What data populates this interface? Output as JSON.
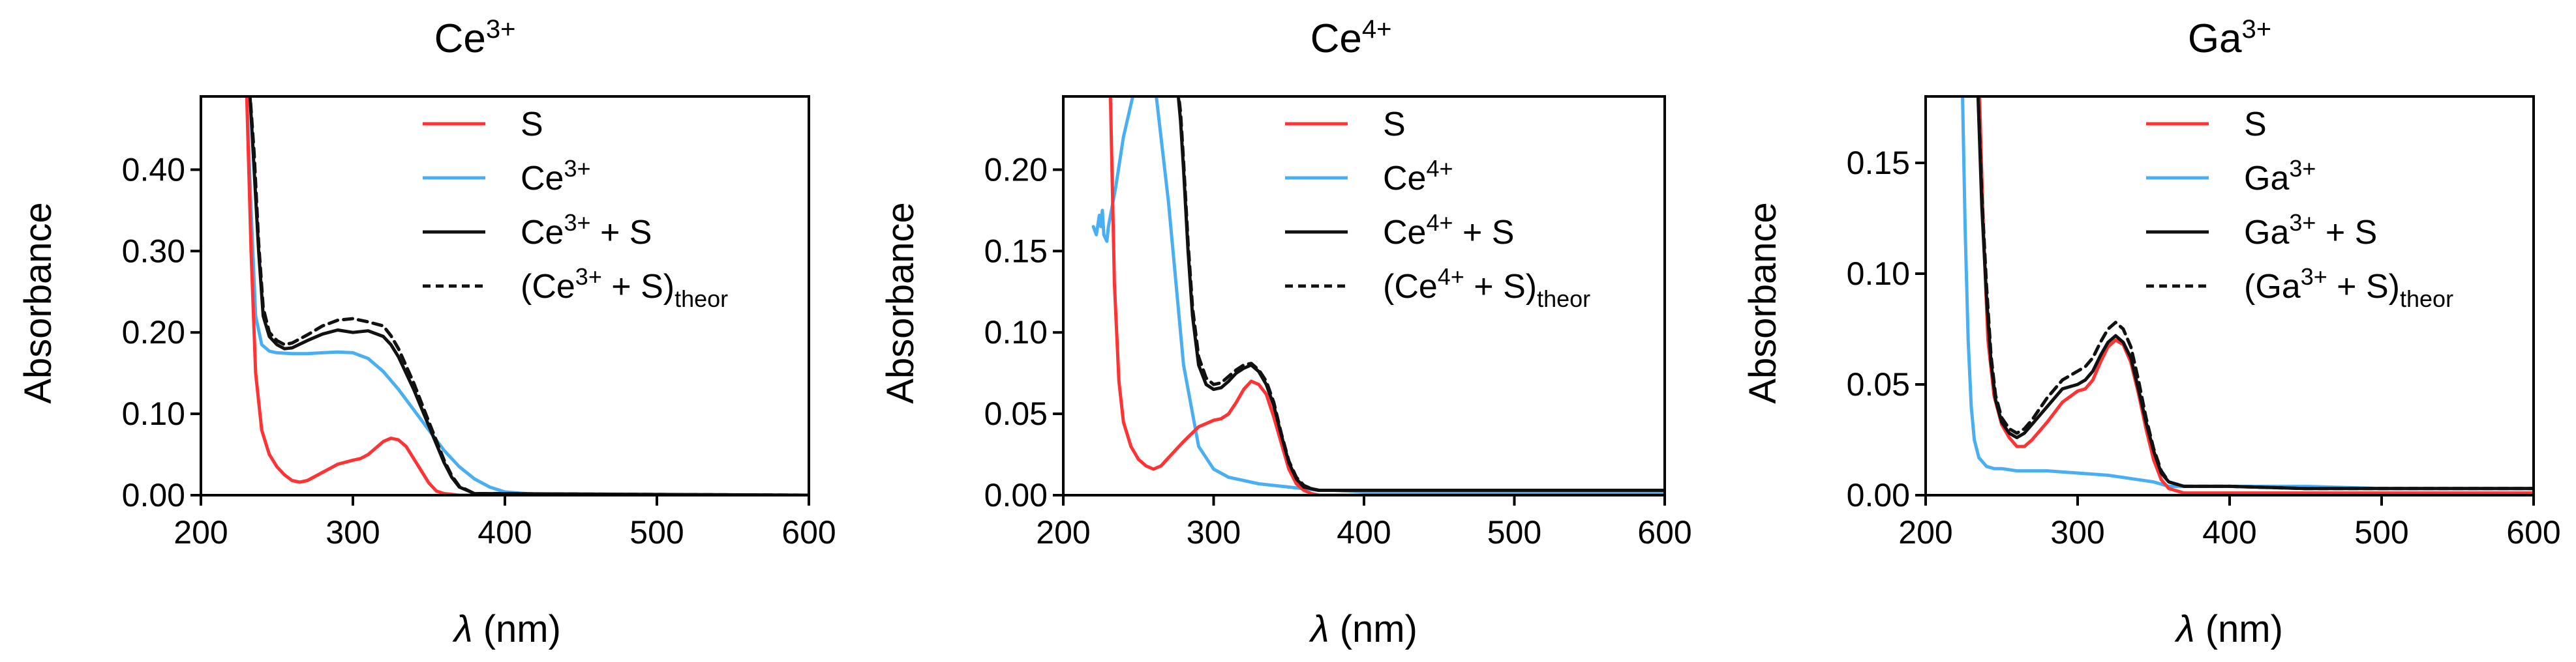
{
  "colors": {
    "S": "#ff3333",
    "ion": "#4aaef2",
    "combined": "#111111",
    "theor": "#111111"
  },
  "chart_data": [
    {
      "type": "line",
      "title": "Ce3+",
      "title_base": "Ce",
      "title_sup": "3+",
      "xlabel_sym": "λ",
      "xlabel_unit": " (nm)",
      "ylabel": "Absorbance",
      "xlim": [
        200,
        600
      ],
      "ylim": [
        0,
        0.49
      ],
      "xticks": [
        "200",
        "300",
        "400",
        "500",
        "600"
      ],
      "yticks": [
        "0.00",
        "0.10",
        "0.20",
        "0.30",
        "0.40"
      ],
      "legend_position": "top-right",
      "legend": [
        {
          "name": "S",
          "base": "S"
        },
        {
          "name": "Ce3+",
          "base": "Ce",
          "sup": "3+"
        },
        {
          "name": "Ce3+ + S",
          "base": "Ce",
          "sup": "3+",
          "tail": " + S"
        },
        {
          "name": "(Ce3+ + S)theor",
          "base": "(Ce",
          "sup": "3+",
          "tail": " + S)",
          "sub": "theor"
        }
      ],
      "series": [
        {
          "name": "S",
          "x": [
            230,
            233,
            236,
            240,
            245,
            250,
            255,
            260,
            265,
            270,
            280,
            290,
            300,
            305,
            310,
            315,
            320,
            325,
            330,
            335,
            340,
            345,
            350,
            355,
            360,
            370,
            400,
            600
          ],
          "y": [
            0.5,
            0.3,
            0.15,
            0.08,
            0.05,
            0.035,
            0.025,
            0.018,
            0.016,
            0.018,
            0.028,
            0.038,
            0.043,
            0.045,
            0.05,
            0.058,
            0.066,
            0.07,
            0.068,
            0.06,
            0.045,
            0.03,
            0.015,
            0.005,
            0.002,
            0,
            0,
            0
          ]
        },
        {
          "name": "Ce3+",
          "x": [
            230,
            233,
            236,
            240,
            245,
            250,
            260,
            270,
            280,
            290,
            300,
            310,
            320,
            330,
            340,
            350,
            360,
            370,
            380,
            390,
            400,
            420,
            450,
            600
          ],
          "y": [
            0.5,
            0.35,
            0.22,
            0.185,
            0.177,
            0.175,
            0.174,
            0.174,
            0.175,
            0.176,
            0.175,
            0.168,
            0.152,
            0.13,
            0.105,
            0.08,
            0.055,
            0.035,
            0.02,
            0.01,
            0.004,
            0.001,
            0,
            0
          ]
        },
        {
          "name": "Ce3+ + S",
          "x": [
            232,
            235,
            238,
            241,
            245,
            250,
            255,
            260,
            270,
            280,
            290,
            300,
            310,
            320,
            325,
            330,
            340,
            350,
            360,
            365,
            370,
            380,
            600
          ],
          "y": [
            0.5,
            0.4,
            0.3,
            0.22,
            0.195,
            0.185,
            0.18,
            0.181,
            0.19,
            0.198,
            0.203,
            0.2,
            0.202,
            0.195,
            0.185,
            0.17,
            0.13,
            0.085,
            0.04,
            0.022,
            0.01,
            0.002,
            0
          ]
        },
        {
          "name": "(Ce3+ + S)theor",
          "x": [
            232,
            235,
            238,
            241,
            245,
            250,
            255,
            260,
            270,
            280,
            290,
            300,
            310,
            320,
            325,
            330,
            340,
            350,
            360,
            365,
            370,
            380,
            600
          ],
          "y": [
            0.5,
            0.42,
            0.31,
            0.23,
            0.2,
            0.19,
            0.185,
            0.187,
            0.197,
            0.208,
            0.215,
            0.217,
            0.213,
            0.208,
            0.196,
            0.18,
            0.138,
            0.09,
            0.043,
            0.024,
            0.011,
            0.002,
            0
          ]
        }
      ]
    },
    {
      "type": "line",
      "title": "Ce4+",
      "title_base": "Ce",
      "title_sup": "4+",
      "xlabel_sym": "λ",
      "xlabel_unit": " (nm)",
      "ylabel": "Absorbance",
      "xlim": [
        200,
        600
      ],
      "ylim": [
        0,
        0.245
      ],
      "xticks": [
        "200",
        "300",
        "400",
        "500",
        "600"
      ],
      "yticks": [
        "0.00",
        "0.05",
        "0.10",
        "0.15",
        "0.20"
      ],
      "legend_position": "top-right",
      "legend": [
        {
          "name": "S",
          "base": "S"
        },
        {
          "name": "Ce4+",
          "base": "Ce",
          "sup": "4+"
        },
        {
          "name": "Ce4+ + S",
          "base": "Ce",
          "sup": "4+",
          "tail": " + S"
        },
        {
          "name": "(Ce4+ + S)theor",
          "base": "(Ce",
          "sup": "4+",
          "tail": " + S)",
          "sub": "theor"
        }
      ],
      "series": [
        {
          "name": "S",
          "x": [
            231,
            234,
            237,
            240,
            245,
            250,
            255,
            260,
            265,
            270,
            280,
            290,
            300,
            305,
            310,
            315,
            320,
            325,
            330,
            335,
            340,
            345,
            350,
            355,
            360,
            365,
            370,
            400,
            600
          ],
          "y": [
            0.26,
            0.13,
            0.07,
            0.045,
            0.03,
            0.022,
            0.018,
            0.016,
            0.018,
            0.023,
            0.033,
            0.042,
            0.046,
            0.047,
            0.05,
            0.057,
            0.065,
            0.07,
            0.068,
            0.062,
            0.048,
            0.032,
            0.016,
            0.007,
            0.003,
            0.001,
            0,
            0,
            0
          ]
        },
        {
          "name": "Ce4+",
          "x": [
            220,
            222,
            224,
            225,
            226,
            227,
            229,
            230,
            232,
            235,
            240,
            245,
            250,
            260,
            270,
            280,
            290,
            300,
            310,
            320,
            330,
            340,
            350,
            360,
            370,
            380,
            400,
            450,
            500,
            600
          ],
          "y": [
            0.165,
            0.16,
            0.172,
            0.165,
            0.175,
            0.16,
            0.156,
            0.165,
            0.175,
            0.19,
            0.22,
            0.24,
            0.26,
            0.26,
            0.18,
            0.08,
            0.03,
            0.016,
            0.011,
            0.009,
            0.007,
            0.006,
            0.005,
            0.004,
            0.003,
            0.003,
            0.002,
            0.002,
            0.0015,
            0.001
          ]
        },
        {
          "name": "Ce4+ + S",
          "x": [
            275,
            278,
            280,
            283,
            286,
            290,
            295,
            300,
            305,
            310,
            315,
            320,
            325,
            330,
            335,
            340,
            345,
            350,
            355,
            360,
            365,
            370,
            380,
            400,
            450,
            500,
            600
          ],
          "y": [
            0.26,
            0.23,
            0.2,
            0.15,
            0.11,
            0.08,
            0.068,
            0.065,
            0.066,
            0.07,
            0.075,
            0.078,
            0.08,
            0.076,
            0.068,
            0.055,
            0.037,
            0.02,
            0.01,
            0.005,
            0.004,
            0.003,
            0.003,
            0.003,
            0.003,
            0.003,
            0.003
          ]
        },
        {
          "name": "(Ce4+ + S)theor",
          "x": [
            275,
            278,
            280,
            283,
            286,
            290,
            295,
            300,
            305,
            310,
            315,
            320,
            325,
            330,
            335,
            340,
            345,
            350,
            355,
            360,
            365,
            370,
            380,
            400,
            450,
            500,
            600
          ],
          "y": [
            0.26,
            0.235,
            0.205,
            0.155,
            0.115,
            0.085,
            0.072,
            0.068,
            0.069,
            0.073,
            0.077,
            0.08,
            0.081,
            0.077,
            0.07,
            0.057,
            0.038,
            0.021,
            0.011,
            0.006,
            0.004,
            0.003,
            0.003,
            0.003,
            0.003,
            0.003,
            0.003
          ]
        }
      ]
    },
    {
      "type": "line",
      "title": "Ga3+",
      "title_base": "Ga",
      "title_sup": "3+",
      "xlabel_sym": "λ",
      "xlabel_unit": " (nm)",
      "ylabel": "Absorbance",
      "xlim": [
        200,
        600
      ],
      "ylim": [
        0,
        0.18
      ],
      "xticks": [
        "200",
        "300",
        "400",
        "500",
        "600"
      ],
      "yticks": [
        "0.00",
        "0.05",
        "0.10",
        "0.15"
      ],
      "legend_position": "top-right",
      "legend": [
        {
          "name": "S",
          "base": "S"
        },
        {
          "name": "Ga3+",
          "base": "Ga",
          "sup": "3+"
        },
        {
          "name": "Ga3+ + S",
          "base": "Ga",
          "sup": "3+",
          "tail": " + S"
        },
        {
          "name": "(Ga3+ + S)theor",
          "base": "(Ga",
          "sup": "3+",
          "tail": " + S)",
          "sub": "theor"
        }
      ],
      "series": [
        {
          "name": "S",
          "x": [
            235,
            238,
            241,
            245,
            250,
            255,
            260,
            265,
            270,
            280,
            290,
            300,
            305,
            310,
            315,
            320,
            325,
            330,
            335,
            340,
            345,
            350,
            355,
            360,
            365,
            370,
            380,
            400,
            600
          ],
          "y": [
            0.19,
            0.12,
            0.07,
            0.045,
            0.032,
            0.026,
            0.022,
            0.022,
            0.025,
            0.033,
            0.042,
            0.047,
            0.048,
            0.052,
            0.06,
            0.067,
            0.07,
            0.068,
            0.06,
            0.046,
            0.03,
            0.016,
            0.007,
            0.003,
            0.002,
            0.001,
            0.001,
            0.001,
            0.001
          ]
        },
        {
          "name": "Ga3+",
          "x": [
            224,
            226,
            228,
            230,
            232,
            235,
            240,
            245,
            250,
            260,
            280,
            300,
            320,
            340,
            350,
            360,
            370,
            380,
            400,
            450,
            500,
            600
          ],
          "y": [
            0.19,
            0.12,
            0.07,
            0.04,
            0.025,
            0.017,
            0.013,
            0.012,
            0.012,
            0.011,
            0.011,
            0.01,
            0.009,
            0.007,
            0.006,
            0.004,
            0.004,
            0.004,
            0.004,
            0.004,
            0.003,
            0.003
          ]
        },
        {
          "name": "Ga3+ + S",
          "x": [
            234,
            237,
            240,
            243,
            246,
            250,
            255,
            260,
            265,
            270,
            280,
            290,
            300,
            305,
            310,
            315,
            320,
            325,
            330,
            335,
            340,
            345,
            350,
            355,
            360,
            365,
            370,
            380,
            400,
            450,
            500,
            600
          ],
          "y": [
            0.19,
            0.13,
            0.09,
            0.06,
            0.043,
            0.033,
            0.028,
            0.026,
            0.028,
            0.032,
            0.04,
            0.048,
            0.05,
            0.052,
            0.056,
            0.063,
            0.069,
            0.072,
            0.069,
            0.062,
            0.048,
            0.033,
            0.02,
            0.01,
            0.006,
            0.005,
            0.004,
            0.004,
            0.004,
            0.003,
            0.003,
            0.003
          ]
        },
        {
          "name": "(Ga3+ + S)theor",
          "x": [
            234,
            237,
            240,
            243,
            246,
            250,
            255,
            260,
            265,
            270,
            280,
            290,
            300,
            305,
            310,
            315,
            320,
            325,
            330,
            335,
            340,
            345,
            350,
            355,
            360,
            365,
            370,
            380,
            400,
            450,
            500,
            600
          ],
          "y": [
            0.19,
            0.135,
            0.095,
            0.063,
            0.045,
            0.035,
            0.03,
            0.028,
            0.03,
            0.034,
            0.044,
            0.052,
            0.056,
            0.058,
            0.062,
            0.069,
            0.075,
            0.078,
            0.075,
            0.067,
            0.052,
            0.035,
            0.021,
            0.011,
            0.006,
            0.005,
            0.004,
            0.004,
            0.004,
            0.003,
            0.003,
            0.003
          ]
        }
      ]
    }
  ]
}
